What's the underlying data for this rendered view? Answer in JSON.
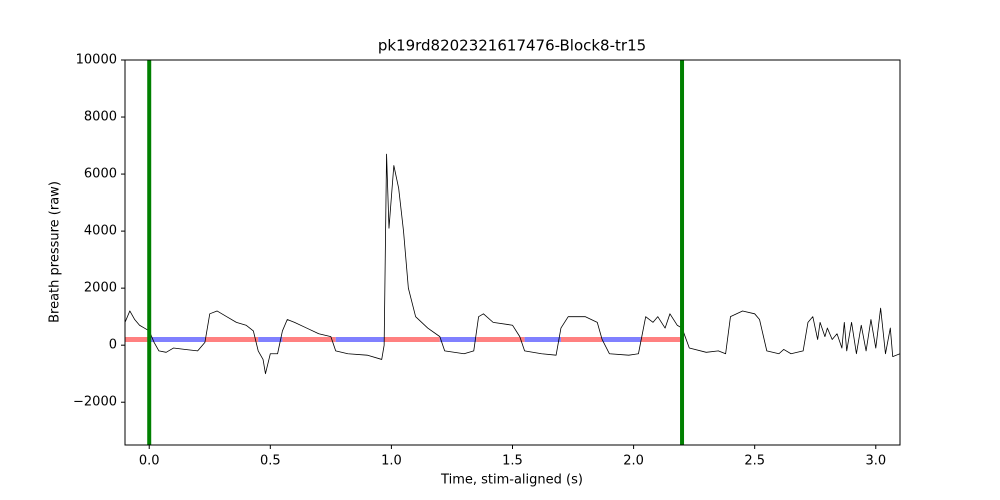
{
  "chart_data": {
    "type": "line",
    "title": "pk19rd8202321617476-Block8-tr15",
    "xlabel": "Time, stim-aligned (s)",
    "ylabel": "Breath pressure (raw)",
    "xlim": [
      -0.1,
      3.1
    ],
    "ylim": [
      -3500,
      10000
    ],
    "xticks": [
      {
        "value": 0,
        "label": "0.0"
      },
      {
        "value": 0.5,
        "label": "0.5"
      },
      {
        "value": 1,
        "label": "1.0"
      },
      {
        "value": 1.5,
        "label": "1.5"
      },
      {
        "value": 2,
        "label": "2.0"
      },
      {
        "value": 2.5,
        "label": "2.5"
      },
      {
        "value": 3,
        "label": "3.0"
      }
    ],
    "yticks": [
      {
        "value": -2000,
        "label": "−2000"
      },
      0,
      2000,
      4000,
      6000,
      8000,
      10000
    ],
    "series": [
      {
        "color": "#ff8080",
        "width": 5,
        "x": [
          -0.1,
          0,
          0.1,
          0.23,
          0.45,
          0.5,
          0.55,
          0.77,
          0.9,
          0.97,
          1.2,
          1.3,
          1.35,
          1.55,
          1.6,
          1.7,
          1.87,
          1.95,
          2.03,
          2.2
        ],
        "values": [
          200,
          200,
          null,
          200,
          200,
          null,
          200,
          200,
          null,
          200,
          200,
          null,
          200,
          200,
          null,
          200,
          200,
          null,
          200,
          200
        ]
      },
      {
        "color": "#8080ff",
        "width": 5,
        "x": [
          0,
          0.23,
          0.3,
          0.45,
          0.55,
          0.6,
          0.77,
          0.97,
          1.1,
          1.2,
          1.35,
          1.45,
          1.55,
          1.7,
          1.8,
          1.87,
          2.03
        ],
        "values": [
          200,
          200,
          null,
          200,
          200,
          null,
          200,
          200,
          null,
          200,
          200,
          null,
          200,
          200,
          null,
          200,
          200
        ]
      },
      {
        "color": "#000000",
        "width": 0.8,
        "x": [
          -0.1,
          -0.08,
          -0.06,
          -0.04,
          -0.02,
          0,
          0.02,
          0.04,
          0.07,
          0.1,
          0.15,
          0.2,
          0.23,
          0.25,
          0.28,
          0.32,
          0.36,
          0.4,
          0.43,
          0.45,
          0.47,
          0.48,
          0.5,
          0.53,
          0.55,
          0.57,
          0.6,
          0.65,
          0.7,
          0.75,
          0.77,
          0.82,
          0.9,
          0.96,
          0.97,
          0.98,
          0.99,
          1.01,
          1.03,
          1.05,
          1.07,
          1.1,
          1.15,
          1.2,
          1.22,
          1.3,
          1.34,
          1.36,
          1.38,
          1.42,
          1.5,
          1.53,
          1.55,
          1.62,
          1.68,
          1.7,
          1.73,
          1.8,
          1.85,
          1.87,
          1.9,
          1.98,
          2.02,
          2.05,
          2.08,
          2.1,
          2.13,
          2.15,
          2.18,
          2.2,
          2.23,
          2.3,
          2.35,
          2.38,
          2.4,
          2.45,
          2.5,
          2.52,
          2.55,
          2.6,
          2.62,
          2.65,
          2.7,
          2.72,
          2.74,
          2.76,
          2.77,
          2.79,
          2.8,
          2.82,
          2.84,
          2.86,
          2.87,
          2.88,
          2.9,
          2.92,
          2.94,
          2.96,
          2.98,
          3.0,
          3.02,
          3.04,
          3.06,
          3.07,
          3.1
        ],
        "values": [
          800,
          1200,
          900,
          700,
          600,
          500,
          100,
          -200,
          -250,
          -100,
          -150,
          -200,
          100,
          1100,
          1200,
          1000,
          800,
          700,
          500,
          -200,
          -500,
          -1000,
          -300,
          -300,
          500,
          900,
          800,
          600,
          400,
          300,
          -200,
          -300,
          -350,
          -500,
          0,
          6700,
          4100,
          6300,
          5500,
          4000,
          2000,
          1000,
          600,
          300,
          -200,
          -300,
          -200,
          1000,
          1100,
          800,
          700,
          300,
          -200,
          -300,
          -350,
          600,
          1000,
          1000,
          800,
          200,
          -300,
          -350,
          -300,
          1000,
          800,
          1000,
          600,
          1100,
          700,
          600,
          -100,
          -250,
          -200,
          -300,
          1000,
          1200,
          1100,
          900,
          -200,
          -300,
          -150,
          -300,
          -200,
          800,
          1000,
          200,
          800,
          300,
          600,
          200,
          400,
          -100,
          800,
          -200,
          800,
          -300,
          700,
          -200,
          900,
          -100,
          1300,
          -300,
          600,
          -400,
          -300
        ]
      }
    ],
    "vlines": {
      "x": [
        0,
        2.2
      ],
      "color": "#008000"
    }
  }
}
